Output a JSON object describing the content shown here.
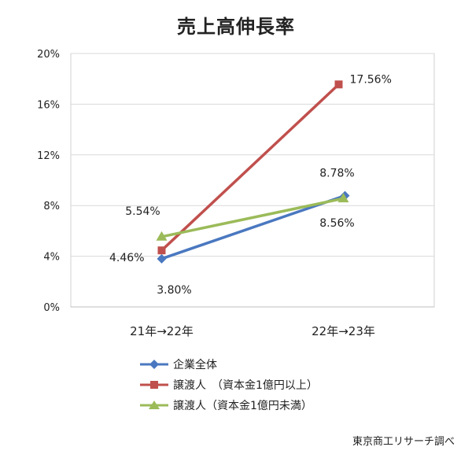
{
  "chart_data": {
    "type": "line",
    "title": "売上高伸長率",
    "categories": [
      "21年→22年",
      "22年→23年"
    ],
    "series": [
      {
        "name": "企業全体",
        "values": [
          3.8,
          8.78
        ],
        "labels": [
          "3.80%",
          "8.78%"
        ],
        "color": "#4a78c0",
        "marker": "diamond"
      },
      {
        "name": "譲渡人　（資本金1億円以上）",
        "values": [
          4.46,
          17.56
        ],
        "labels": [
          "4.46%",
          "17.56%"
        ],
        "color": "#c0504d",
        "marker": "square"
      },
      {
        "name": "譲渡人（資本金1億円未満）",
        "values": [
          5.54,
          8.56
        ],
        "labels": [
          "5.54%",
          "8.56%"
        ],
        "color": "#9bbb59",
        "marker": "triangle"
      }
    ],
    "ylim": [
      0,
      20
    ],
    "yticks": [
      "0%",
      "4%",
      "8%",
      "12%",
      "16%",
      "20%"
    ],
    "ytick_values": [
      0,
      4,
      8,
      12,
      16,
      20
    ],
    "grid": true,
    "legend_position": "bottom"
  },
  "source_note": "東京商工リサーチ調べ"
}
